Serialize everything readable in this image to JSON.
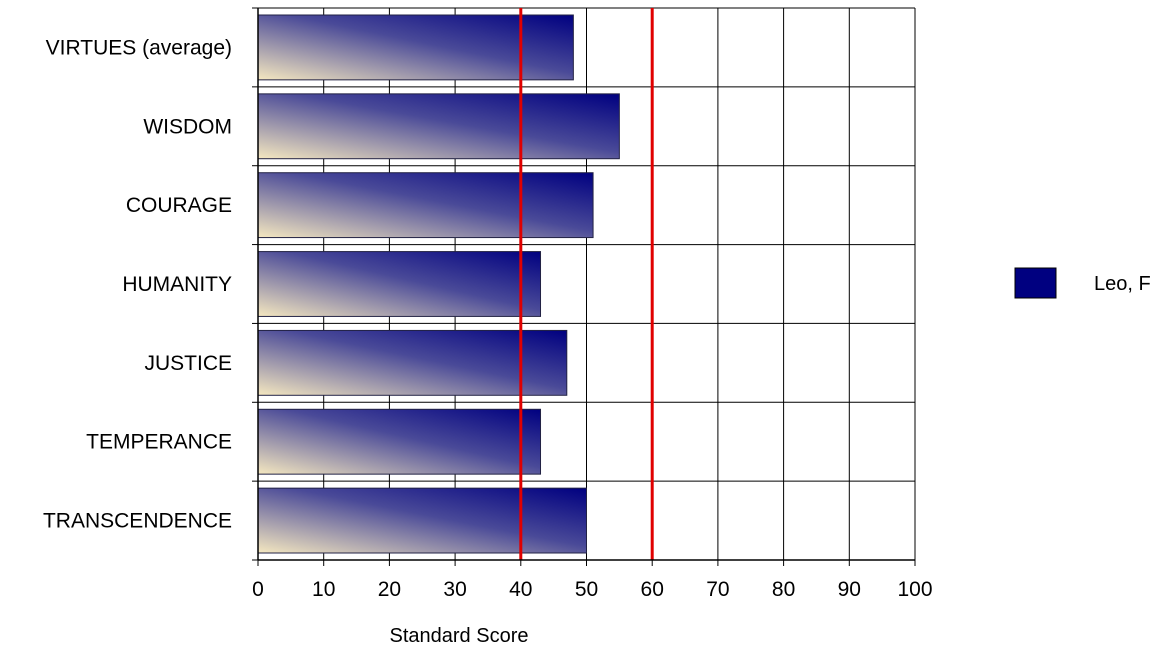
{
  "chart_data": {
    "type": "bar",
    "orientation": "horizontal",
    "categories": [
      "VIRTUES (average)",
      "WISDOM",
      "COURAGE",
      "HUMANITY",
      "JUSTICE",
      "TEMPERANCE",
      "TRANSCENDENCE"
    ],
    "series": [
      {
        "name": "Leo, F",
        "values": [
          48,
          55,
          51,
          43,
          47,
          43,
          50
        ],
        "color": "#000080"
      }
    ],
    "xlabel": "Standard Score",
    "ylabel": "",
    "xlim": [
      0,
      100
    ],
    "x_ticks": [
      0,
      10,
      20,
      30,
      40,
      50,
      60,
      70,
      80,
      90,
      100
    ],
    "reference_lines": [
      {
        "value": 40,
        "color": "#e00000"
      },
      {
        "value": 60,
        "color": "#e00000"
      }
    ],
    "grid": true,
    "legend_position": "right",
    "bar_gradient": {
      "from": "#f5e8c0",
      "to": "#000080"
    }
  }
}
